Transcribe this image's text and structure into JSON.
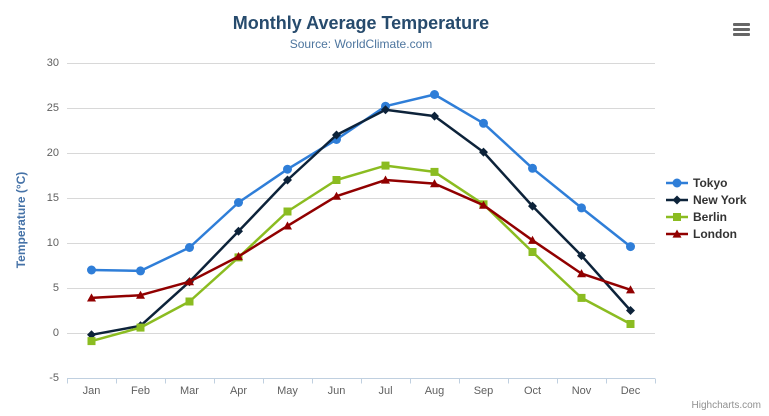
{
  "header": {
    "title": "Monthly Average Temperature",
    "subtitle": "Source: WorldClimate.com",
    "export_menu_icon": "hamburger-menu"
  },
  "credits": "Highcharts.com",
  "theme": {
    "title_color": "#274b6d",
    "subtitle_color": "#4d759e",
    "axis_title_color": "#4572a7",
    "tick_label_color": "#606060",
    "grid_color": "#d8d8d8",
    "axis_line_color": "#c0d0e0",
    "legend_text_color": "#333333",
    "credits_color": "#909090",
    "burger_color": "#666666",
    "background": "#ffffff"
  },
  "chart_data": {
    "type": "line",
    "title": "Monthly Average Temperature",
    "subtitle": "Source: WorldClimate.com",
    "xlabel": "",
    "ylabel": "Temperature (°C)",
    "categories": [
      "Jan",
      "Feb",
      "Mar",
      "Apr",
      "May",
      "Jun",
      "Jul",
      "Aug",
      "Sep",
      "Oct",
      "Nov",
      "Dec"
    ],
    "ylim": [
      -5,
      30
    ],
    "ytick_interval": 5,
    "grid": "horizontal-only",
    "legend_position": "right",
    "series": [
      {
        "name": "Tokyo",
        "color": "#2f7ed8",
        "marker": "circle",
        "values": [
          7.0,
          6.9,
          9.5,
          14.5,
          18.2,
          21.5,
          25.2,
          26.5,
          23.3,
          18.3,
          13.9,
          9.6
        ]
      },
      {
        "name": "New York",
        "color": "#0d233a",
        "marker": "diamond",
        "values": [
          -0.2,
          0.8,
          5.7,
          11.3,
          17.0,
          22.0,
          24.8,
          24.1,
          20.1,
          14.1,
          8.6,
          2.5
        ]
      },
      {
        "name": "Berlin",
        "color": "#8bbc21",
        "marker": "square",
        "values": [
          -0.9,
          0.6,
          3.5,
          8.4,
          13.5,
          17.0,
          18.6,
          17.9,
          14.3,
          9.0,
          3.9,
          1.0
        ]
      },
      {
        "name": "London",
        "color": "#910000",
        "marker": "triangle",
        "values": [
          3.9,
          4.2,
          5.7,
          8.5,
          11.9,
          15.2,
          17.0,
          16.6,
          14.2,
          10.3,
          6.6,
          4.8
        ]
      }
    ]
  }
}
